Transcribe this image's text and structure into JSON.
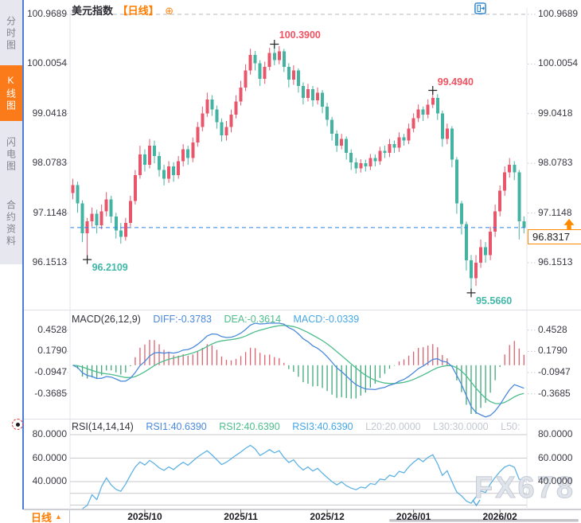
{
  "sidebar": {
    "tabs": [
      {
        "label": "分时图",
        "active": false
      },
      {
        "label": "K线图",
        "active": true
      },
      {
        "label": "闪电图",
        "active": false
      },
      {
        "label": "合约资料",
        "active": false
      }
    ]
  },
  "header": {
    "symbol_name": "美元指数",
    "period_tag": "【日线】",
    "add_icon_char": "⊕"
  },
  "toolbar": {
    "icons": [
      "move-chart",
      "fit-price-axis",
      "fit-time-axis",
      "exit-chart"
    ]
  },
  "chart_data": {
    "type": "candlestick",
    "title": "美元指数 日线",
    "y_axis_labels": [
      "100.9689",
      "100.0054",
      "99.0418",
      "98.0783",
      "97.1148",
      "96.1513"
    ],
    "x_axis_labels": [
      {
        "label": "2025/10",
        "index": 15
      },
      {
        "label": "2025/11",
        "index": 35
      },
      {
        "label": "2025/12",
        "index": 53
      },
      {
        "label": "2026/01",
        "index": 71
      },
      {
        "label": "2026/02",
        "index": 89
      }
    ],
    "candles": [
      [
        97.5,
        97.78,
        97.38,
        97.66
      ],
      [
        97.66,
        97.72,
        97.12,
        97.3
      ],
      [
        97.3,
        97.36,
        96.55,
        96.72
      ],
      [
        96.72,
        97.02,
        96.2109,
        96.95
      ],
      [
        96.95,
        97.22,
        96.85,
        97.1
      ],
      [
        97.1,
        97.18,
        96.72,
        96.88
      ],
      [
        96.88,
        97.28,
        96.8,
        97.15
      ],
      [
        97.15,
        97.52,
        97.05,
        97.38
      ],
      [
        97.38,
        97.45,
        96.92,
        97.05
      ],
      [
        97.05,
        97.12,
        96.62,
        96.78
      ],
      [
        96.78,
        96.92,
        96.52,
        96.65
      ],
      [
        96.65,
        97.02,
        96.58,
        96.92
      ],
      [
        96.92,
        97.45,
        96.85,
        97.35
      ],
      [
        97.35,
        97.95,
        97.28,
        97.85
      ],
      [
        97.85,
        98.42,
        97.78,
        98.25
      ],
      [
        98.25,
        98.35,
        97.92,
        98.05
      ],
      [
        98.05,
        98.55,
        97.98,
        98.42
      ],
      [
        98.42,
        98.52,
        98.08,
        98.22
      ],
      [
        98.22,
        98.3,
        97.82,
        97.95
      ],
      [
        97.95,
        98.05,
        97.65,
        97.78
      ],
      [
        97.78,
        98.12,
        97.7,
        98.02
      ],
      [
        98.02,
        98.1,
        97.72,
        97.85
      ],
      [
        97.85,
        98.22,
        97.78,
        98.12
      ],
      [
        98.12,
        98.45,
        98.02,
        98.35
      ],
      [
        98.35,
        98.42,
        98.05,
        98.18
      ],
      [
        98.18,
        98.58,
        98.1,
        98.48
      ],
      [
        98.48,
        98.88,
        98.4,
        98.78
      ],
      [
        98.78,
        99.18,
        98.7,
        99.05
      ],
      [
        99.05,
        99.45,
        98.98,
        99.32
      ],
      [
        99.32,
        99.4,
        99.0,
        99.12
      ],
      [
        99.12,
        99.2,
        98.75,
        98.88
      ],
      [
        98.88,
        98.95,
        98.5,
        98.62
      ],
      [
        98.62,
        98.9,
        98.52,
        98.78
      ],
      [
        98.78,
        99.12,
        98.68,
        99.02
      ],
      [
        99.02,
        99.4,
        98.95,
        99.28
      ],
      [
        99.28,
        99.68,
        99.2,
        99.55
      ],
      [
        99.55,
        100.0,
        99.48,
        99.88
      ],
      [
        99.88,
        100.3,
        99.8,
        100.18
      ],
      [
        100.18,
        100.26,
        99.88,
        100.02
      ],
      [
        100.02,
        100.08,
        99.58,
        99.72
      ],
      [
        99.72,
        100.05,
        99.62,
        99.95
      ],
      [
        99.95,
        100.32,
        99.88,
        100.22
      ],
      [
        100.22,
        100.39,
        99.98,
        100.08
      ],
      [
        100.08,
        100.35,
        100.0,
        100.25
      ],
      [
        100.25,
        100.3,
        99.85,
        99.95
      ],
      [
        99.95,
        100.02,
        99.55,
        99.7
      ],
      [
        99.7,
        99.98,
        99.6,
        99.88
      ],
      [
        99.88,
        99.92,
        99.45,
        99.58
      ],
      [
        99.58,
        99.65,
        99.22,
        99.35
      ],
      [
        99.35,
        99.62,
        99.28,
        99.52
      ],
      [
        99.52,
        99.58,
        99.18,
        99.3
      ],
      [
        99.3,
        99.55,
        99.22,
        99.45
      ],
      [
        99.45,
        99.5,
        99.05,
        99.18
      ],
      [
        99.18,
        99.25,
        98.8,
        98.92
      ],
      [
        98.92,
        98.98,
        98.52,
        98.65
      ],
      [
        98.65,
        98.72,
        98.3,
        98.42
      ],
      [
        98.42,
        98.65,
        98.35,
        98.55
      ],
      [
        98.55,
        98.6,
        98.15,
        98.28
      ],
      [
        98.28,
        98.35,
        97.95,
        98.1
      ],
      [
        98.1,
        98.18,
        97.88,
        97.98
      ],
      [
        97.98,
        98.16,
        97.9,
        98.08
      ],
      [
        98.08,
        98.15,
        97.92,
        98.02
      ],
      [
        98.02,
        98.26,
        97.95,
        98.18
      ],
      [
        98.18,
        98.25,
        98.02,
        98.12
      ],
      [
        98.12,
        98.4,
        98.05,
        98.32
      ],
      [
        98.32,
        98.42,
        98.18,
        98.28
      ],
      [
        98.28,
        98.55,
        98.2,
        98.45
      ],
      [
        98.45,
        98.52,
        98.28,
        98.38
      ],
      [
        98.38,
        98.68,
        98.3,
        98.58
      ],
      [
        98.58,
        98.65,
        98.42,
        98.52
      ],
      [
        98.52,
        98.85,
        98.45,
        98.75
      ],
      [
        98.75,
        99.05,
        98.68,
        98.95
      ],
      [
        98.95,
        99.22,
        98.88,
        99.12
      ],
      [
        99.12,
        99.18,
        98.9,
        99.02
      ],
      [
        99.02,
        99.32,
        98.95,
        99.22
      ],
      [
        99.22,
        99.494,
        99.15,
        99.35
      ],
      [
        99.35,
        99.42,
        98.92,
        99.05
      ],
      [
        99.05,
        99.1,
        98.4,
        98.55
      ],
      [
        98.55,
        98.85,
        98.45,
        98.75
      ],
      [
        98.75,
        98.8,
        98.0,
        98.15
      ],
      [
        98.15,
        98.2,
        97.1,
        97.3
      ],
      [
        97.3,
        97.35,
        96.7,
        96.9
      ],
      [
        96.9,
        96.95,
        96.0,
        96.2
      ],
      [
        96.2,
        96.3,
        95.566,
        95.85
      ],
      [
        95.85,
        96.3,
        95.7,
        96.15
      ],
      [
        96.15,
        96.6,
        96.05,
        96.45
      ],
      [
        96.45,
        96.55,
        96.15,
        96.3
      ],
      [
        96.3,
        96.85,
        96.2,
        96.75
      ],
      [
        96.75,
        97.28,
        96.65,
        97.15
      ],
      [
        97.15,
        97.65,
        97.05,
        97.55
      ],
      [
        97.55,
        98.02,
        97.45,
        97.9
      ],
      [
        97.9,
        98.18,
        97.8,
        98.05
      ],
      [
        98.05,
        98.12,
        97.75,
        97.9
      ],
      [
        97.9,
        97.95,
        96.6,
        96.95
      ],
      [
        96.95,
        97.05,
        96.72,
        96.8317
      ]
    ],
    "annotations": [
      {
        "text": "100.3900",
        "index": 42,
        "price": 100.39,
        "kind": "high"
      },
      {
        "text": "99.4940",
        "index": 75,
        "price": 99.494,
        "kind": "high"
      },
      {
        "text": "96.2109",
        "index": 3,
        "price": 96.2109,
        "kind": "low"
      },
      {
        "text": "95.5660",
        "index": 83,
        "price": 95.566,
        "kind": "low"
      }
    ],
    "current_price": {
      "label": "96.8317",
      "value": 96.8317
    },
    "top_dashed_level": 100.9689
  },
  "macd": {
    "title": "MACD(26,12,9)",
    "diff_text": "DIFF:-0.3783",
    "dea_text": "DEA:-0.3614",
    "macd_text": "MACD:-0.0339",
    "params": {
      "slow": 26,
      "fast": 12,
      "signal": 9
    },
    "y_axis_labels": [
      "0.4528",
      "0.1790",
      "-0.0947",
      "-0.3685"
    ]
  },
  "rsi": {
    "title": "RSI(14,14,14)",
    "rsi1_text": "RSI1:40.6390",
    "rsi2_text": "RSI2:40.6390",
    "rsi3_text": "RSI3:40.6390",
    "l20_text": "L20:20.0000",
    "l30_text": "L30:30.0000",
    "l50_text": "L50:",
    "period": 14,
    "y_axis_labels": [
      "80.0000",
      "60.0000",
      "40.0000"
    ],
    "gridline_levels": [
      80,
      60,
      40,
      30,
      20
    ]
  },
  "footer": {
    "period_label": "日线",
    "arrow_char": "▲"
  },
  "watermark": {
    "text": "FX678"
  },
  "colors": {
    "up": "#e8566b",
    "down": "#45b3a2",
    "orange": "#ff7e00",
    "diff_line": "#4a89dc",
    "dea_line": "#4dbd8c",
    "macd_bar_up": "#e0606d",
    "macd_bar_down": "#3fa879",
    "rsi_line": "#5fb3e4",
    "price_line": "#2f82e8",
    "annotation_high": "#ef5362",
    "annotation_low": "#3fb8a8"
  }
}
